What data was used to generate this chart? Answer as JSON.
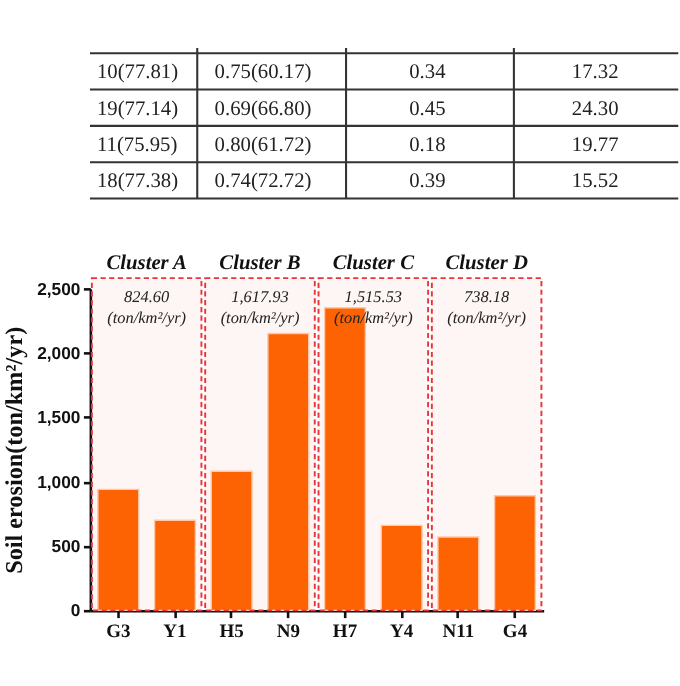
{
  "chart_data": {
    "type": "bar",
    "ylabel": "Soil erosion(ton/km²/yr)",
    "categories": [
      "G3",
      "Y1",
      "H5",
      "N9",
      "H7",
      "Y4",
      "N11",
      "G4"
    ],
    "values": [
      940,
      700,
      1080,
      2150,
      2350,
      660,
      570,
      890
    ],
    "color": "#ff6600",
    "ylim": [
      0,
      2500
    ],
    "yticks": [
      0,
      500,
      {
        "value": 1000,
        "label": "1,000"
      },
      {
        "value": 1500,
        "label": "1,500"
      },
      {
        "value": 2000,
        "label": "2,000"
      },
      {
        "value": 2500,
        "label": "2,500"
      }
    ],
    "grid": false,
    "bands": [
      {
        "axis": "x",
        "from": "G3",
        "to": "Y1",
        "label": "Cluster A",
        "color": "#e8343b"
      },
      {
        "axis": "x",
        "from": "H5",
        "to": "N9",
        "label": "Cluster B",
        "color": "#e8343b"
      },
      {
        "axis": "x",
        "from": "H7",
        "to": "Y4",
        "label": "Cluster C",
        "color": "#e8343b"
      },
      {
        "axis": "x",
        "from": "N11",
        "to": "G4",
        "label": "Cluster D",
        "color": "#e8343b"
      }
    ],
    "annotations": [
      "824.60\n(ton/km²/yr)",
      "1,617.93\n(ton/km²/yr)",
      "1,515.53\n(ton/km²/yr)",
      "738.18\n(ton/km²/yr)",
      "10(77.81)",
      "0.75(60.17)",
      "0.34",
      "17.32",
      "19(77.14)",
      "0.69(66.80)",
      "0.45",
      "24.30",
      "11(75.95)",
      "0.80(61.72)",
      "0.18",
      "19.77",
      "18(77.38)",
      "0.74(72.72)",
      "0.39",
      "15.52"
    ]
  }
}
